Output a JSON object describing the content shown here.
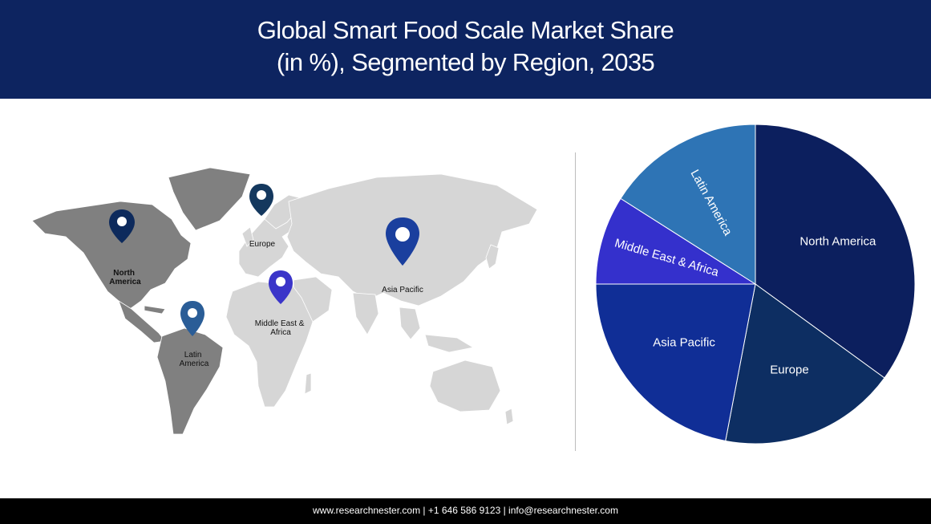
{
  "header": {
    "title_line1": "Global Smart Food Scale Market Share",
    "title_line2": "(in %), Segmented by Region, 2035"
  },
  "map": {
    "pins": [
      {
        "key": "north-america",
        "label_lines": [
          "North",
          "America"
        ],
        "color": "#0d2a5c",
        "bold": true
      },
      {
        "key": "europe",
        "label_lines": [
          "Europe"
        ],
        "color": "#14385e",
        "bold": false
      },
      {
        "key": "asia-pacific",
        "label_lines": [
          "Asia Pacific"
        ],
        "color": "#1a3f9e",
        "bold": false
      },
      {
        "key": "middle-east-africa",
        "label_lines": [
          "Middle East &",
          "Africa"
        ],
        "color": "#3b35c9",
        "bold": false
      },
      {
        "key": "latin-america",
        "label_lines": [
          "Latin",
          "America"
        ],
        "color": "#2a5d97",
        "bold": false
      }
    ]
  },
  "chart_data": {
    "type": "pie",
    "title": "Global Smart Food Scale Market Share (in %), Segmented by Region, 2035",
    "slices": [
      {
        "label": "North America",
        "value": 35,
        "color": "#0c1f5e"
      },
      {
        "label": "Europe",
        "value": 18,
        "color": "#0d2e62"
      },
      {
        "label": "Asia Pacific",
        "value": 22,
        "color": "#102e96"
      },
      {
        "label": "Middle East & Africa",
        "value": 9,
        "color": "#3430cc"
      },
      {
        "label": "Latin America",
        "value": 16,
        "color": "#2e74b5"
      }
    ]
  },
  "footer": {
    "text": "www.researchnester.com  | +1 646 586 9123 | info@researchnester.com"
  }
}
